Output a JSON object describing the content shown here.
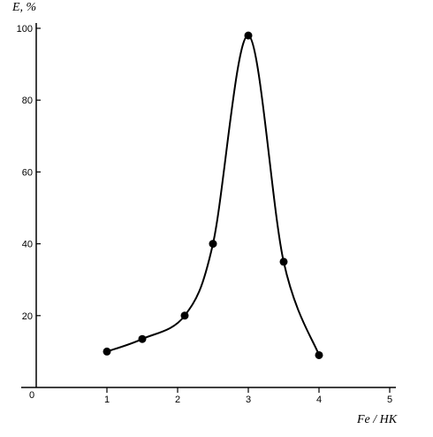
{
  "chart_data": {
    "type": "line",
    "title": "",
    "xlabel": "Fe / HK",
    "ylabel": "E, %",
    "origin_label": "0",
    "xlim": [
      0,
      5
    ],
    "ylim": [
      0,
      100
    ],
    "x_ticks": [
      "1",
      "2",
      "3",
      "4",
      "5"
    ],
    "y_ticks": [
      "20",
      "40",
      "60",
      "80",
      "100"
    ],
    "grid": false,
    "legend": "none",
    "series": [
      {
        "x": [
          1.0,
          1.5,
          2.1,
          2.5,
          3.0,
          3.5,
          4.0
        ],
        "y": [
          10,
          13.5,
          20,
          40,
          98,
          35,
          9
        ]
      }
    ],
    "colors": {
      "line": "#000000",
      "marker": "#000000",
      "axis": "#000000"
    }
  }
}
